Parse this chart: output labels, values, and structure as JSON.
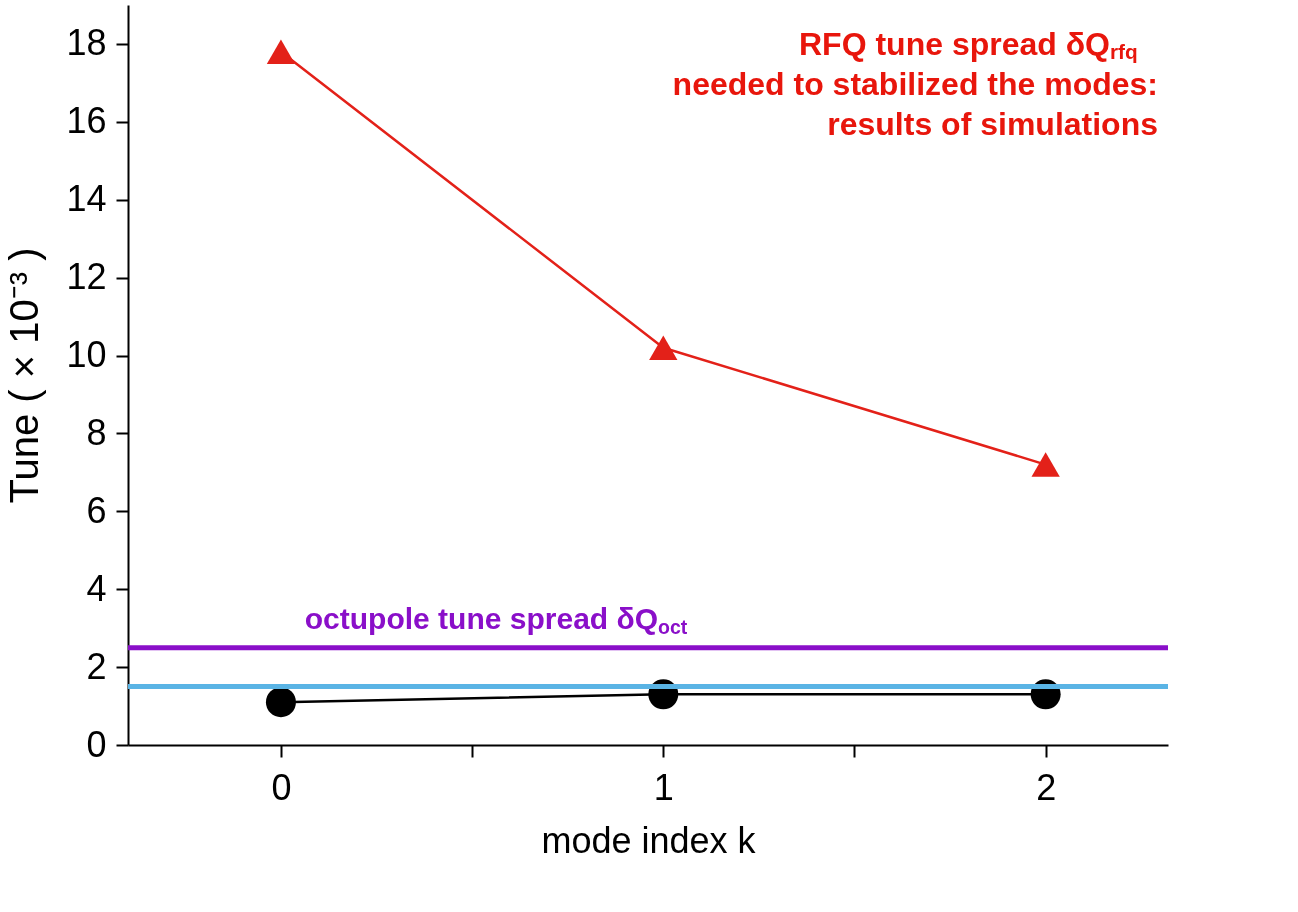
{
  "chart_data": {
    "type": "line",
    "ylabel": "Tune ( × 10⁻³ )",
    "xlabel": "mode index k",
    "x": [
      0,
      1,
      2
    ],
    "series": [
      {
        "color": "#e32119",
        "marker": "triangle",
        "values": [
          17.8,
          10.2,
          7.2
        ]
      },
      {
        "color": "#000000",
        "marker": "circle",
        "values": [
          1.1,
          1.3,
          1.3
        ]
      }
    ],
    "xlim": [
      -0.4,
      2.32
    ],
    "xticks": [
      0,
      {
        "value": 0.5,
        "label": null
      },
      1,
      {
        "value": 1.5,
        "label": null
      },
      2
    ],
    "ylim": [
      0,
      19
    ],
    "yticks": [
      0,
      2,
      4,
      6,
      8,
      10,
      12,
      14,
      16,
      18
    ],
    "ref_lines": [
      {
        "axis": "y",
        "value": 2.5,
        "label": "octupole tune spread δQ$_{oct}$",
        "color": "#8a0fc9"
      },
      {
        "axis": "y",
        "value": 1.5,
        "label": null,
        "color": "#5ab4e5"
      }
    ],
    "annotations": [
      "RFQ tune spread δQ$_{rfq}$",
      "needed to stabilized the modes:",
      "results of simulations"
    ],
    "grid": false,
    "line_style": "solid"
  }
}
